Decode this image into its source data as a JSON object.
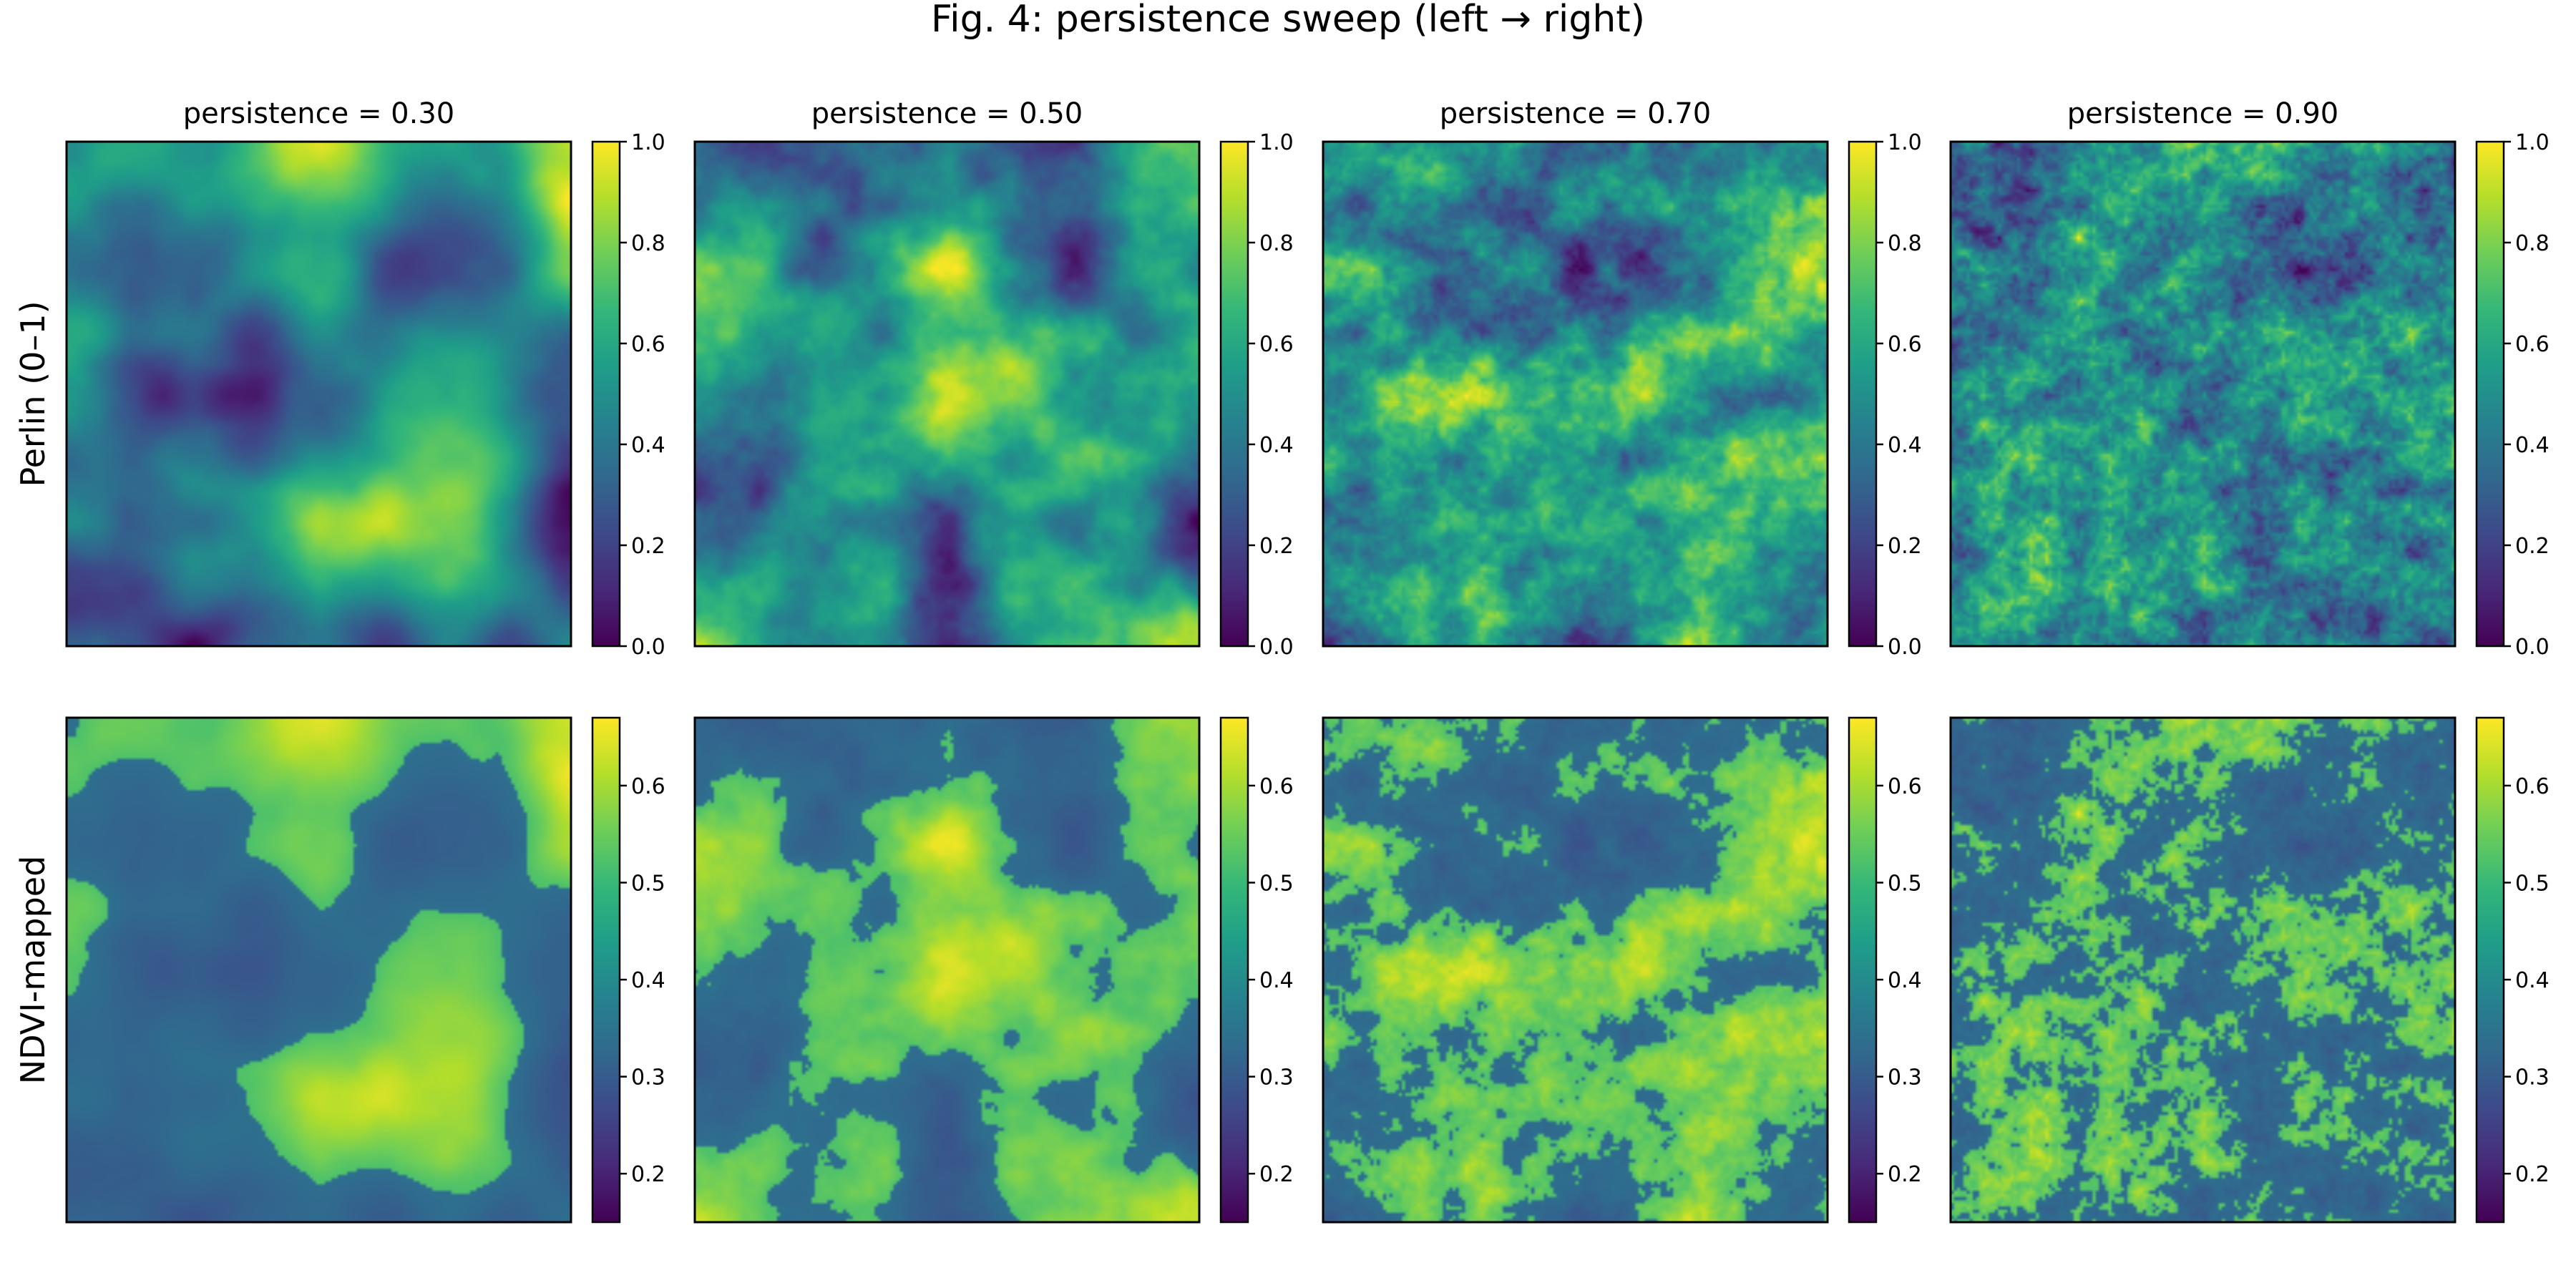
{
  "figure": {
    "title": "Fig. 4: persistence sweep (left → right)"
  },
  "chart_data": {
    "type": "heatmap",
    "title": "Fig. 4: persistence sweep (left → right)",
    "colormap": "viridis",
    "colormap_stops": [
      "#440154",
      "#482878",
      "#3e4989",
      "#31688e",
      "#26828e",
      "#1f9e89",
      "#35b779",
      "#6ece58",
      "#b5de2b",
      "#fde725"
    ],
    "columns": [
      {
        "title": "persistence = 0.30",
        "persistence": 0.3
      },
      {
        "title": "persistence = 0.50",
        "persistence": 0.5
      },
      {
        "title": "persistence = 0.70",
        "persistence": 0.7
      },
      {
        "title": "persistence = 0.90",
        "persistence": 0.9
      }
    ],
    "rows": [
      {
        "ylabel": "Perlin (0–1)",
        "colorbar": {
          "vmin": 0.0,
          "vmax": 1.0,
          "ticks": [
            0.0,
            0.2,
            0.4,
            0.6,
            0.8,
            1.0
          ],
          "tick_labels": [
            "0.0",
            "0.2",
            "0.4",
            "0.6",
            "0.8",
            "1.0"
          ]
        }
      },
      {
        "ylabel": "NDVI-mapped",
        "colorbar": {
          "vmin": 0.15,
          "vmax": 0.67,
          "ticks": [
            0.2,
            0.3,
            0.4,
            0.5,
            0.6
          ],
          "tick_labels": [
            "0.2",
            "0.3",
            "0.4",
            "0.5",
            "0.6"
          ]
        }
      }
    ],
    "grid": false
  }
}
